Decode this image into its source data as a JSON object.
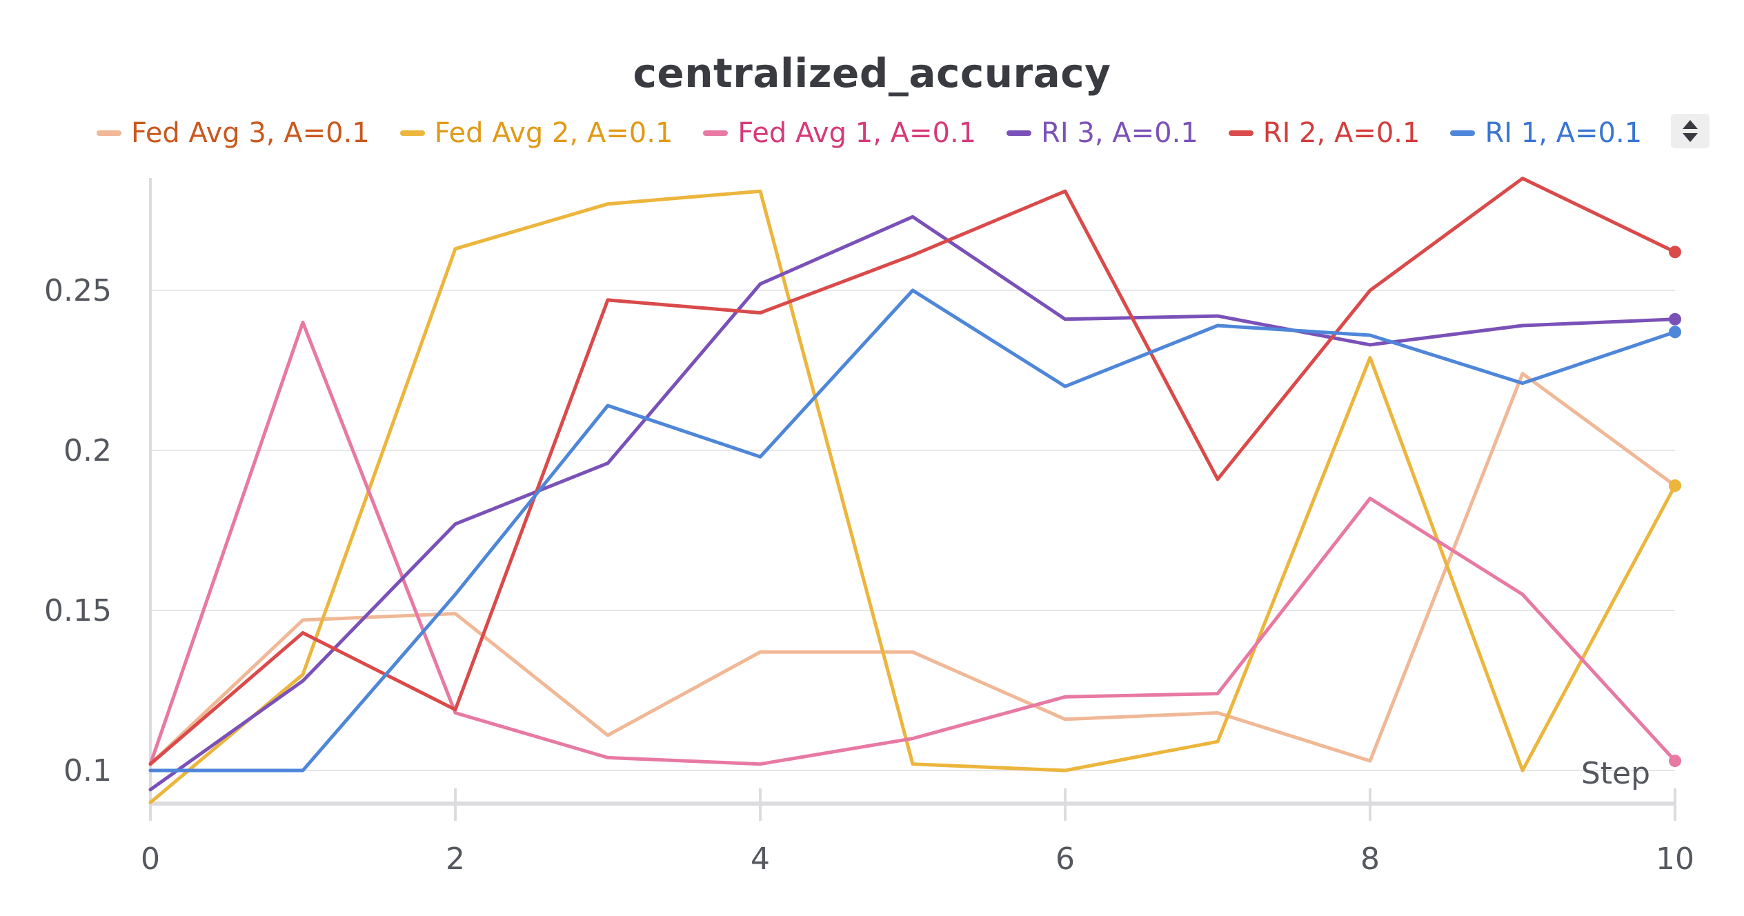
{
  "chart_data": {
    "type": "line",
    "title": "centralized_accuracy",
    "xlabel": "Step",
    "ylabel": "",
    "xlim": [
      0,
      10
    ],
    "ylim": [
      0.09,
      0.285
    ],
    "x_ticks": [
      "0",
      "2",
      "4",
      "6",
      "8",
      "10"
    ],
    "y_ticks": [
      "0.1",
      "0.15",
      "0.2",
      "0.25"
    ],
    "y_tick_values": [
      0.1,
      0.15,
      0.2,
      0.25
    ],
    "x_tick_values": [
      0,
      2,
      4,
      6,
      8,
      10
    ],
    "grid": "horizontal",
    "legend_position": "top",
    "x": [
      0,
      1,
      2,
      3,
      4,
      5,
      6,
      7,
      8,
      9,
      10
    ],
    "series": [
      {
        "name": "Fed Avg 3, A=0.1",
        "color": "#f0b896",
        "text_color": "#c9581e",
        "values": [
          0.102,
          0.147,
          0.149,
          0.111,
          0.137,
          0.137,
          0.116,
          0.118,
          0.103,
          0.224,
          0.189
        ]
      },
      {
        "name": "Fed Avg 2, A=0.1",
        "color": "#ecb53c",
        "text_color": "#e09a16",
        "values": [
          0.09,
          0.13,
          0.263,
          0.277,
          0.281,
          0.102,
          0.1,
          0.109,
          0.229,
          0.1,
          0.189
        ]
      },
      {
        "name": "Fed Avg 1, A=0.1",
        "color": "#e779a2",
        "text_color": "#d63a78",
        "values": [
          0.102,
          0.24,
          0.118,
          0.104,
          0.102,
          0.11,
          0.123,
          0.124,
          0.185,
          0.155,
          0.103
        ]
      },
      {
        "name": "RI 3, A=0.1",
        "color": "#7a51b8",
        "text_color": "#7a51b8",
        "values": [
          0.094,
          0.128,
          0.177,
          0.196,
          0.252,
          0.273,
          0.241,
          0.242,
          0.233,
          0.239,
          0.241
        ]
      },
      {
        "name": "RI 2, A=0.1",
        "color": "#da4a4a",
        "text_color": "#d23c3c",
        "values": [
          0.102,
          0.143,
          0.119,
          0.247,
          0.243,
          0.261,
          0.281,
          0.191,
          0.25,
          0.285,
          0.262
        ]
      },
      {
        "name": "RI 1, A=0.1",
        "color": "#4e86d9",
        "text_color": "#3a75d3",
        "values": [
          0.1,
          0.1,
          0.155,
          0.214,
          0.198,
          0.25,
          0.22,
          0.239,
          0.236,
          0.221,
          0.237
        ]
      }
    ]
  },
  "colors": {
    "grid": "#e6e6e9",
    "axis": "#dcdcdf",
    "tick_text": "#55575e",
    "title": "#3a3b40"
  }
}
